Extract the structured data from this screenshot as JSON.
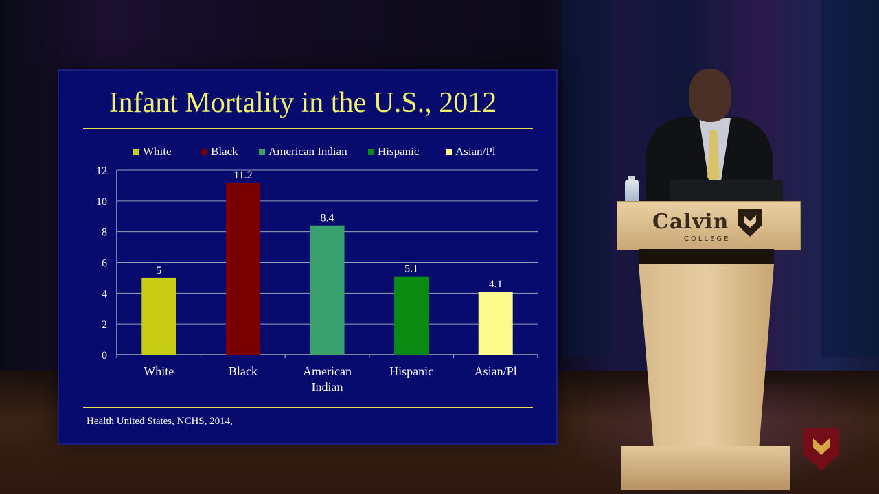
{
  "slide": {
    "title": "Infant Mortality in the U.S., 2012",
    "source": "Health United States, NCHS, 2014,"
  },
  "chart_data": {
    "type": "bar",
    "title": "Infant Mortality in the U.S., 2012",
    "categories": [
      "White",
      "Black",
      "American Indian",
      "Hispanic",
      "Asian/Pl"
    ],
    "category_lines": [
      [
        "White"
      ],
      [
        "Black"
      ],
      [
        "American",
        "Indian"
      ],
      [
        "Hispanic"
      ],
      [
        "Asian/Pl"
      ]
    ],
    "values": [
      5,
      11.2,
      8.4,
      5.1,
      4.1
    ],
    "value_labels": [
      "5",
      "11.2",
      "8.4",
      "5.1",
      "4.1"
    ],
    "legend": [
      "White",
      "Black",
      "American Indian",
      "Hispanic",
      "Asian/Pl"
    ],
    "colors": [
      "#c8cc14",
      "#7a0000",
      "#3aa06e",
      "#0b8a12",
      "#fbfa8a"
    ],
    "ylim": [
      0,
      12
    ],
    "yticks": [
      0,
      2,
      4,
      6,
      8,
      10,
      12
    ],
    "grid": true,
    "legend_position": "top",
    "xlabel": "",
    "ylabel": ""
  },
  "stage": {
    "podium_logo": "Calvin",
    "podium_sub": "COLLEGE"
  }
}
